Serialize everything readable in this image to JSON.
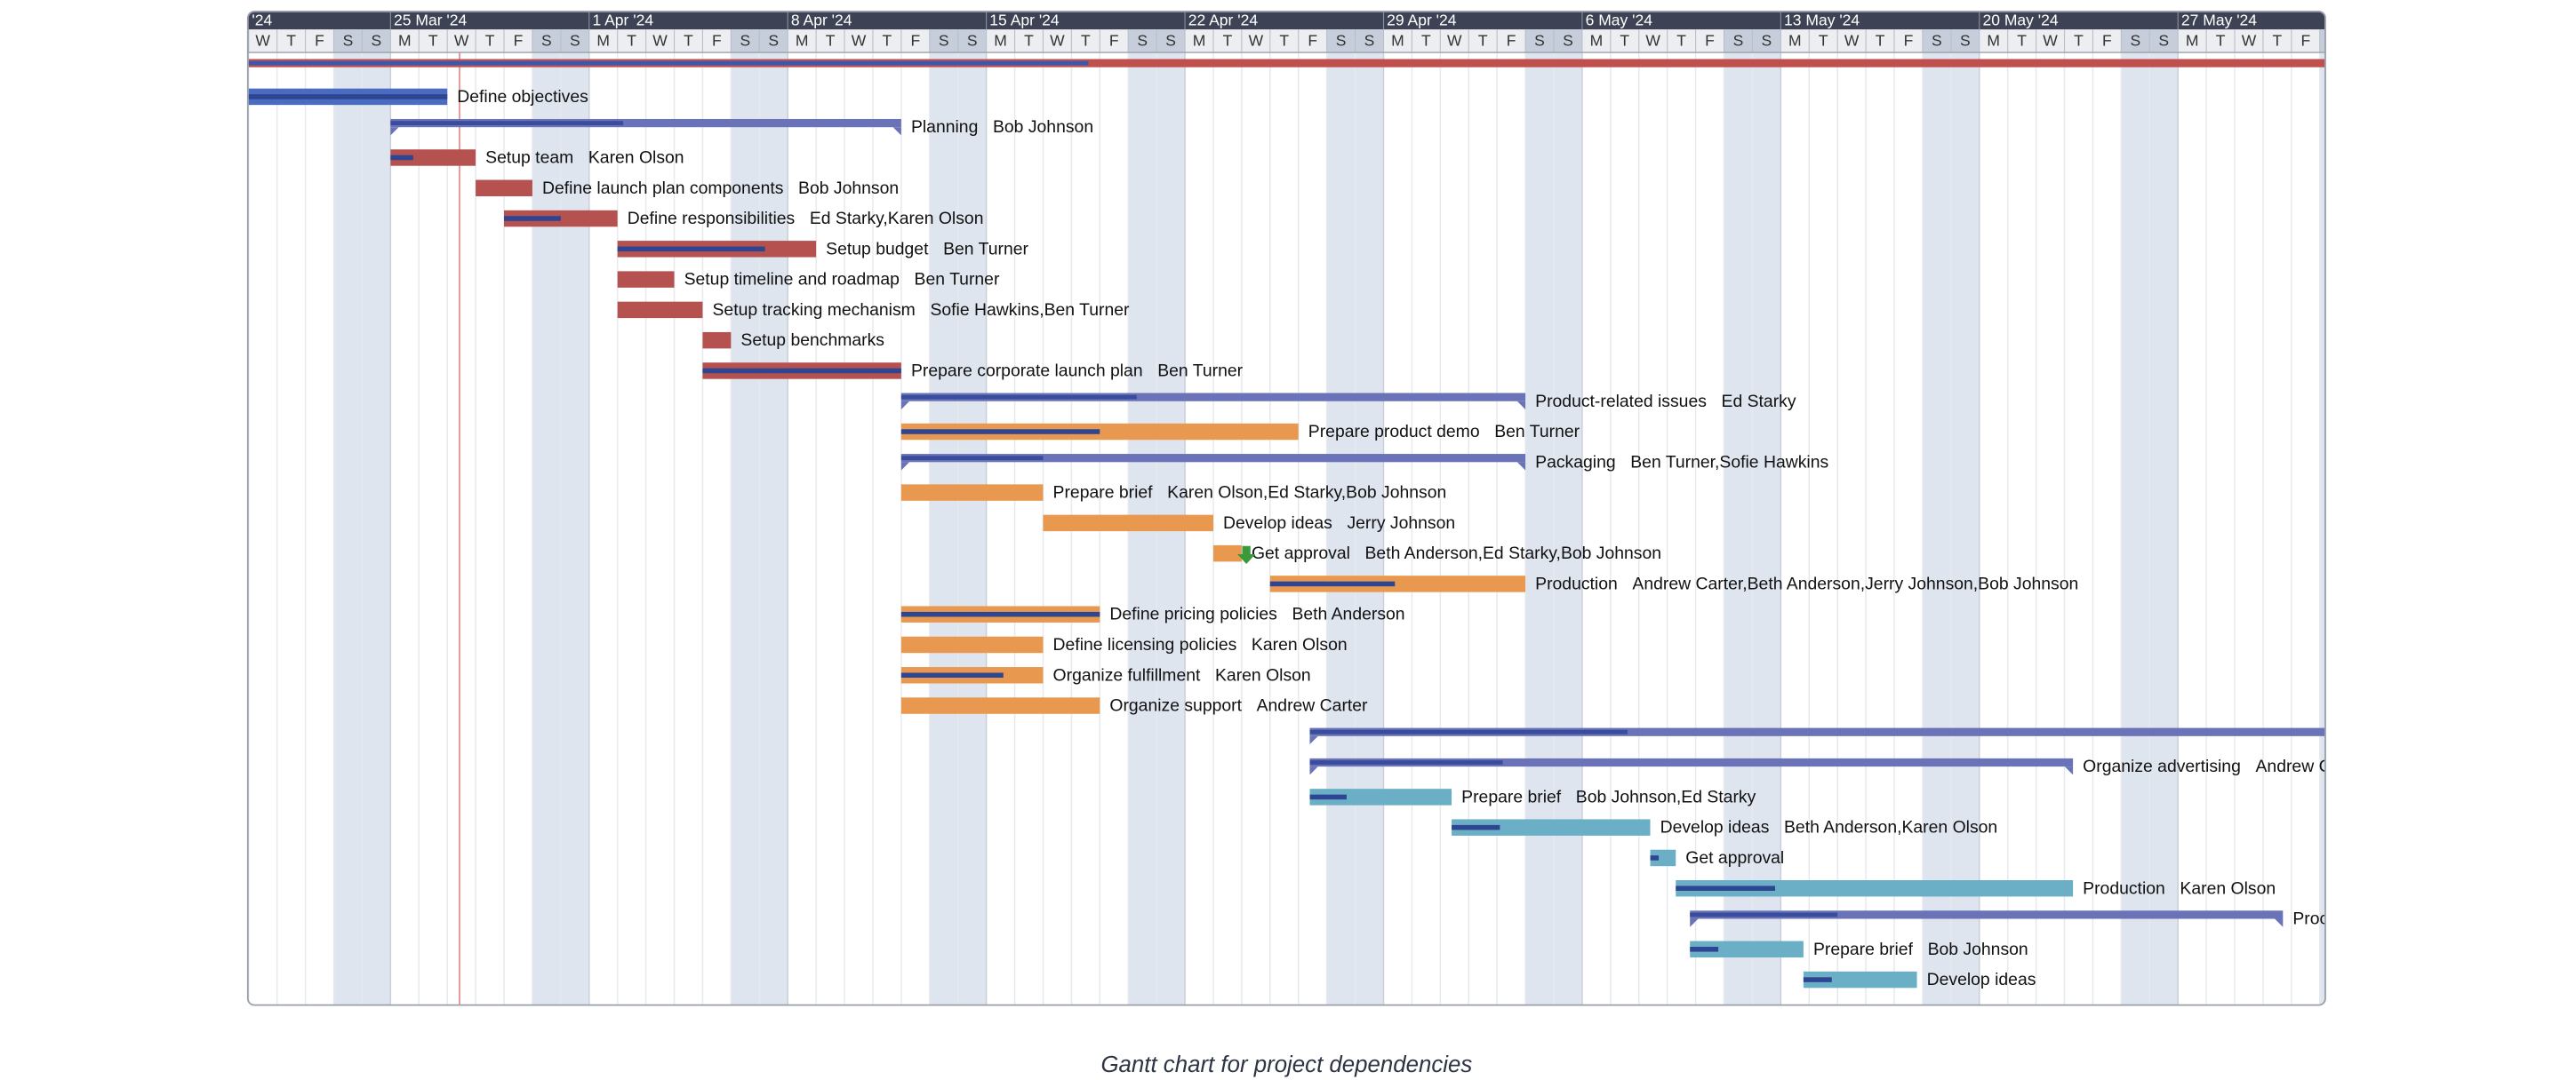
{
  "chart_data": {
    "type": "gantt",
    "caption": "Gantt chart for project dependencies",
    "xlim": [
      0,
      74
    ],
    "weeks": [
      "'24",
      "25 Mar '24",
      "1 Apr '24",
      "8 Apr '24",
      "15 Apr '24",
      "22 Apr '24",
      "29 Apr '24",
      "6 May '24",
      "13 May '24",
      "20 May '24",
      "27 May '24"
    ],
    "days": [
      "W",
      "T",
      "F",
      "S",
      "S",
      "M",
      "T",
      "W",
      "T",
      "F",
      "S",
      "S",
      "M",
      "T",
      "W",
      "T",
      "F",
      "S",
      "S",
      "M",
      "T",
      "W",
      "T",
      "F",
      "S",
      "S",
      "M",
      "T",
      "W",
      "T",
      "F",
      "S",
      "S",
      "M",
      "T",
      "W",
      "T",
      "F",
      "S",
      "S",
      "M",
      "T",
      "W",
      "T",
      "F",
      "S",
      "S",
      "M",
      "T",
      "W",
      "T",
      "F",
      "S",
      "S",
      "M",
      "T",
      "W",
      "T",
      "F",
      "S",
      "S",
      "M",
      "T",
      "W",
      "T",
      "F",
      "S",
      "S",
      "M",
      "T",
      "W",
      "T",
      "F",
      "S"
    ],
    "tasks": [
      {
        "summary": true,
        "start": 0,
        "end": 74,
        "progress": 29.6,
        "color": "#c0504d"
      },
      {
        "name": "Define objectives",
        "start": 0,
        "end": 7,
        "progress": 7,
        "color": "#4a6cc0"
      },
      {
        "name": "Planning",
        "resources": "Bob Johnson",
        "summary": true,
        "start": 5,
        "end": 23,
        "progress": 13.2,
        "color": "#6a72b8"
      },
      {
        "name": "Setup team",
        "resources": "Karen Olson",
        "start": 5,
        "end": 8,
        "progress": 5.8,
        "color": "#b5514f"
      },
      {
        "name": "Define launch plan components",
        "resources": "Bob Johnson",
        "start": 8,
        "end": 10,
        "progress": 8,
        "color": "#b5514f"
      },
      {
        "name": "Define responsibilities",
        "resources": "Ed Starky,Karen Olson",
        "start": 9,
        "end": 13,
        "progress": 11,
        "color": "#b5514f"
      },
      {
        "name": "Setup budget",
        "resources": "Ben Turner",
        "start": 13,
        "end": 20,
        "progress": 18.2,
        "color": "#b5514f"
      },
      {
        "name": "Setup timeline and roadmap",
        "resources": "Ben Turner",
        "start": 13,
        "end": 15,
        "progress": 13,
        "color": "#b5514f"
      },
      {
        "name": "Setup tracking mechanism",
        "resources": "Sofie Hawkins,Ben Turner",
        "start": 13,
        "end": 16,
        "progress": 13,
        "color": "#b5514f"
      },
      {
        "name": "Setup benchmarks",
        "start": 16,
        "end": 17,
        "progress": 16,
        "color": "#b5514f"
      },
      {
        "name": "Prepare corporate launch plan",
        "resources": "Ben Turner",
        "start": 16,
        "end": 23,
        "progress": 23,
        "color": "#b5514f"
      },
      {
        "name": "Product-related issues",
        "resources": "Ed Starky",
        "summary": true,
        "start": 23,
        "end": 45,
        "progress": 31.3,
        "color": "#6a72b8"
      },
      {
        "name": "Prepare product demo",
        "resources": "Ben Turner",
        "start": 23,
        "end": 37,
        "progress": 30,
        "color": "#e8994f"
      },
      {
        "name": "Packaging",
        "resources": "Ben Turner,Sofie Hawkins",
        "summary": true,
        "start": 23,
        "end": 45,
        "progress": 28,
        "color": "#6a72b8"
      },
      {
        "name": "Prepare brief",
        "resources": "Karen Olson,Ed Starky,Bob Johnson",
        "start": 23,
        "end": 28,
        "progress": 23,
        "color": "#e8994f"
      },
      {
        "name": "Develop ideas",
        "resources": "Jerry Johnson",
        "start": 28,
        "end": 34,
        "progress": 28,
        "color": "#e8994f"
      },
      {
        "name": "Get approval",
        "resources": "Beth Anderson,Ed Starky,Bob Johnson",
        "start": 34,
        "end": 35,
        "progress": 34,
        "color": "#e8994f"
      },
      {
        "name": "Production",
        "resources": "Andrew Carter,Beth Anderson,Jerry Johnson,Bob Johnson",
        "start": 36,
        "end": 45,
        "progress": 40.4,
        "color": "#e8994f"
      },
      {
        "name": "Define pricing policies",
        "resources": "Beth Anderson",
        "start": 23,
        "end": 30,
        "progress": 30,
        "color": "#e8994f"
      },
      {
        "name": "Define licensing policies",
        "resources": "Karen Olson",
        "start": 23,
        "end": 28,
        "progress": 23,
        "color": "#e8994f"
      },
      {
        "name": "Organize fulfillment",
        "resources": "Karen Olson",
        "start": 23,
        "end": 28,
        "progress": 26.6,
        "color": "#e8994f"
      },
      {
        "name": "Organize support",
        "resources": "Andrew Carter",
        "start": 23,
        "end": 30,
        "progress": 23,
        "color": "#e8994f"
      },
      {
        "summary": true,
        "start": 37.4,
        "end": 75,
        "progress": 48.6,
        "color": "#6a72b8"
      },
      {
        "name": "Organize advertising",
        "resources": "Andrew Ca",
        "summary": true,
        "start": 37.4,
        "end": 64.3,
        "progress": 44.2,
        "color": "#6a72b8"
      },
      {
        "name": "Prepare brief",
        "resources": "Bob Johnson,Ed Starky",
        "start": 37.4,
        "end": 42.4,
        "progress": 38.7,
        "color": "#6aafc6"
      },
      {
        "name": "Develop ideas",
        "resources": "Beth Anderson,Karen Olson",
        "start": 42.4,
        "end": 49.4,
        "progress": 44.1,
        "color": "#6aafc6"
      },
      {
        "name": "Get approval",
        "start": 49.4,
        "end": 50.3,
        "progress": 49.7,
        "color": "#6aafc6"
      },
      {
        "name": "Production",
        "resources": "Karen Olson",
        "start": 50.3,
        "end": 64.3,
        "progress": 53.8,
        "color": "#6aafc6"
      },
      {
        "name": "Proc",
        "summary": true,
        "start": 50.8,
        "end": 71.7,
        "progress": 56,
        "color": "#6a72b8"
      },
      {
        "name": "Prepare brief",
        "resources": "Bob Johnson",
        "start": 50.8,
        "end": 54.8,
        "progress": 51.8,
        "color": "#6aafc6"
      },
      {
        "name": "Develop ideas",
        "start": 54.8,
        "end": 58.8,
        "progress": 55.8,
        "color": "#6aafc6"
      }
    ]
  }
}
